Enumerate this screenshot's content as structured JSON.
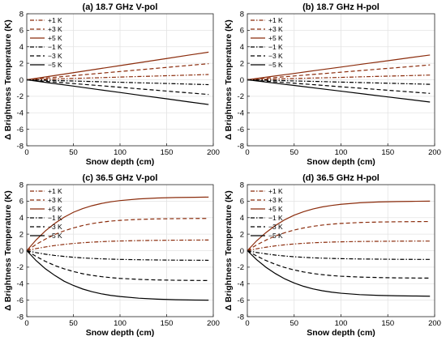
{
  "chart_data": [
    {
      "type": "line",
      "title": "(a) 18.7 GHz V-pol",
      "xlabel": "Snow depth (cm)",
      "ylabel": "Δ Brightness Temperature (K)",
      "xlim": [
        0,
        200
      ],
      "ylim": [
        -8,
        8
      ],
      "xticks": [
        0,
        50,
        100,
        150,
        200
      ],
      "yticks": [
        -8,
        -6,
        -4,
        -2,
        0,
        2,
        4,
        6,
        8
      ],
      "grid": true,
      "legend_position": "top-left",
      "x": [
        0,
        25,
        50,
        75,
        100,
        125,
        150,
        175,
        195
      ],
      "series": [
        {
          "name": "+1 K",
          "color": "#8b2c0c",
          "dash": "dashdot",
          "values": [
            0,
            0.08,
            0.16,
            0.24,
            0.33,
            0.41,
            0.49,
            0.57,
            0.64
          ]
        },
        {
          "name": "+3 K",
          "color": "#8b2c0c",
          "dash": "dashed",
          "values": [
            0,
            0.25,
            0.5,
            0.75,
            1.0,
            1.25,
            1.5,
            1.75,
            1.95
          ]
        },
        {
          "name": "+5 K",
          "color": "#8b2c0c",
          "dash": "solid",
          "values": [
            0,
            0.43,
            0.86,
            1.29,
            1.72,
            2.15,
            2.58,
            3.01,
            3.35
          ]
        },
        {
          "name": "−1 K",
          "color": "#000000",
          "dash": "dashdot",
          "values": [
            0,
            -0.08,
            -0.15,
            -0.23,
            -0.3,
            -0.38,
            -0.45,
            -0.53,
            -0.59
          ]
        },
        {
          "name": "−3 K",
          "color": "#000000",
          "dash": "dashed",
          "values": [
            0,
            -0.23,
            -0.46,
            -0.68,
            -0.91,
            -1.14,
            -1.37,
            -1.6,
            -1.78
          ]
        },
        {
          "name": "−5 K",
          "color": "#000000",
          "dash": "solid",
          "values": [
            0,
            -0.39,
            -0.77,
            -1.16,
            -1.54,
            -1.93,
            -2.31,
            -2.7,
            -3.0
          ]
        }
      ]
    },
    {
      "type": "line",
      "title": "(b) 18.7 GHz H-pol",
      "xlabel": "Snow depth (cm)",
      "ylabel": "Δ Brightness Temperature (K)",
      "xlim": [
        0,
        200
      ],
      "ylim": [
        -8,
        8
      ],
      "xticks": [
        0,
        50,
        100,
        150,
        200
      ],
      "yticks": [
        -8,
        -6,
        -4,
        -2,
        0,
        2,
        4,
        6,
        8
      ],
      "grid": true,
      "legend_position": "top-left",
      "x": [
        0,
        25,
        50,
        75,
        100,
        125,
        150,
        175,
        195
      ],
      "series": [
        {
          "name": "+1 K",
          "color": "#8b2c0c",
          "dash": "dashdot",
          "values": [
            0,
            0.07,
            0.15,
            0.22,
            0.29,
            0.37,
            0.44,
            0.51,
            0.57
          ]
        },
        {
          "name": "+3 K",
          "color": "#8b2c0c",
          "dash": "dashed",
          "values": [
            0,
            0.23,
            0.46,
            0.69,
            0.92,
            1.15,
            1.38,
            1.61,
            1.8
          ]
        },
        {
          "name": "+5 K",
          "color": "#8b2c0c",
          "dash": "solid",
          "values": [
            0,
            0.39,
            0.77,
            1.16,
            1.54,
            1.93,
            2.31,
            2.7,
            3.0
          ]
        },
        {
          "name": "−1 K",
          "color": "#000000",
          "dash": "dashdot",
          "values": [
            0,
            -0.07,
            -0.14,
            -0.21,
            -0.28,
            -0.35,
            -0.42,
            -0.49,
            -0.55
          ]
        },
        {
          "name": "−3 K",
          "color": "#000000",
          "dash": "dashed",
          "values": [
            0,
            -0.21,
            -0.42,
            -0.63,
            -0.85,
            -1.06,
            -1.27,
            -1.48,
            -1.65
          ]
        },
        {
          "name": "−5 K",
          "color": "#000000",
          "dash": "solid",
          "values": [
            0,
            -0.35,
            -0.69,
            -1.04,
            -1.38,
            -1.73,
            -2.08,
            -2.42,
            -2.7
          ]
        }
      ]
    },
    {
      "type": "line",
      "title": "(c) 36.5 GHz V-pol",
      "xlabel": "Snow depth (cm)",
      "ylabel": "Δ Brightness Temperature (K)",
      "xlim": [
        0,
        200
      ],
      "ylim": [
        -8,
        8
      ],
      "xticks": [
        0,
        50,
        100,
        150,
        200
      ],
      "yticks": [
        -8,
        -6,
        -4,
        -2,
        0,
        2,
        4,
        6,
        8
      ],
      "grid": true,
      "legend_position": "top-left",
      "x": [
        0,
        10,
        20,
        30,
        40,
        50,
        60,
        70,
        80,
        90,
        100,
        120,
        140,
        160,
        180,
        195
      ],
      "series": [
        {
          "name": "+1 K",
          "color": "#8b2c0c",
          "dash": "dashdot",
          "values": [
            0,
            0.25,
            0.45,
            0.62,
            0.76,
            0.87,
            0.96,
            1.03,
            1.09,
            1.14,
            1.17,
            1.22,
            1.25,
            1.27,
            1.28,
            1.29
          ]
        },
        {
          "name": "+3 K",
          "color": "#8b2c0c",
          "dash": "dashed",
          "values": [
            0,
            0.75,
            1.4,
            1.95,
            2.4,
            2.75,
            3.05,
            3.28,
            3.45,
            3.58,
            3.67,
            3.79,
            3.85,
            3.88,
            3.9,
            3.9
          ]
        },
        {
          "name": "+5 K",
          "color": "#8b2c0c",
          "dash": "solid",
          "values": [
            0,
            1.3,
            2.4,
            3.3,
            4.05,
            4.65,
            5.1,
            5.45,
            5.72,
            5.92,
            6.07,
            6.27,
            6.38,
            6.44,
            6.47,
            6.49
          ]
        },
        {
          "name": "−1 K",
          "color": "#000000",
          "dash": "dashdot",
          "values": [
            0,
            -0.24,
            -0.43,
            -0.58,
            -0.7,
            -0.8,
            -0.88,
            -0.94,
            -0.99,
            -1.03,
            -1.06,
            -1.1,
            -1.13,
            -1.15,
            -1.16,
            -1.17
          ]
        },
        {
          "name": "−3 K",
          "color": "#000000",
          "dash": "dashed",
          "values": [
            0,
            -0.7,
            -1.3,
            -1.8,
            -2.2,
            -2.53,
            -2.8,
            -3.0,
            -3.15,
            -3.27,
            -3.36,
            -3.48,
            -3.55,
            -3.59,
            -3.61,
            -3.62
          ]
        },
        {
          "name": "−5 K",
          "color": "#000000",
          "dash": "solid",
          "values": [
            0,
            -1.2,
            -2.2,
            -3.0,
            -3.7,
            -4.22,
            -4.65,
            -4.98,
            -5.23,
            -5.42,
            -5.56,
            -5.76,
            -5.88,
            -5.95,
            -5.99,
            -6.0
          ]
        }
      ]
    },
    {
      "type": "line",
      "title": "(d) 36.5 GHz H-pol",
      "xlabel": "Snow depth (cm)",
      "ylabel": "Δ Brightness Temperature (K)",
      "xlim": [
        0,
        200
      ],
      "ylim": [
        -8,
        8
      ],
      "xticks": [
        0,
        50,
        100,
        150,
        200
      ],
      "yticks": [
        -8,
        -6,
        -4,
        -2,
        0,
        2,
        4,
        6,
        8
      ],
      "grid": true,
      "legend_position": "top-left",
      "x": [
        0,
        10,
        20,
        30,
        40,
        50,
        60,
        70,
        80,
        90,
        100,
        120,
        140,
        160,
        180,
        195
      ],
      "series": [
        {
          "name": "+1 K",
          "color": "#8b2c0c",
          "dash": "dashdot",
          "values": [
            0,
            0.23,
            0.42,
            0.58,
            0.71,
            0.81,
            0.89,
            0.95,
            1.0,
            1.04,
            1.07,
            1.11,
            1.13,
            1.15,
            1.16,
            1.16
          ]
        },
        {
          "name": "+3 K",
          "color": "#8b2c0c",
          "dash": "dashed",
          "values": [
            0,
            0.7,
            1.28,
            1.78,
            2.18,
            2.5,
            2.75,
            2.95,
            3.1,
            3.21,
            3.3,
            3.41,
            3.47,
            3.5,
            3.52,
            3.53
          ]
        },
        {
          "name": "+5 K",
          "color": "#8b2c0c",
          "dash": "solid",
          "values": [
            0,
            1.2,
            2.2,
            3.05,
            3.75,
            4.3,
            4.72,
            5.05,
            5.3,
            5.48,
            5.62,
            5.8,
            5.9,
            5.95,
            5.98,
            6.0
          ]
        },
        {
          "name": "−1 K",
          "color": "#000000",
          "dash": "dashdot",
          "values": [
            0,
            -0.22,
            -0.39,
            -0.54,
            -0.65,
            -0.74,
            -0.81,
            -0.87,
            -0.91,
            -0.94,
            -0.97,
            -1.01,
            -1.03,
            -1.05,
            -1.06,
            -1.06
          ]
        },
        {
          "name": "−3 K",
          "color": "#000000",
          "dash": "dashed",
          "values": [
            0,
            -0.65,
            -1.2,
            -1.66,
            -2.04,
            -2.34,
            -2.58,
            -2.77,
            -2.91,
            -3.02,
            -3.1,
            -3.2,
            -3.26,
            -3.3,
            -3.32,
            -3.33
          ]
        },
        {
          "name": "−5 K",
          "color": "#000000",
          "dash": "solid",
          "values": [
            0,
            -1.1,
            -2.02,
            -2.78,
            -3.42,
            -3.92,
            -4.32,
            -4.63,
            -4.86,
            -5.03,
            -5.16,
            -5.33,
            -5.42,
            -5.47,
            -5.5,
            -5.52
          ]
        }
      ]
    }
  ]
}
